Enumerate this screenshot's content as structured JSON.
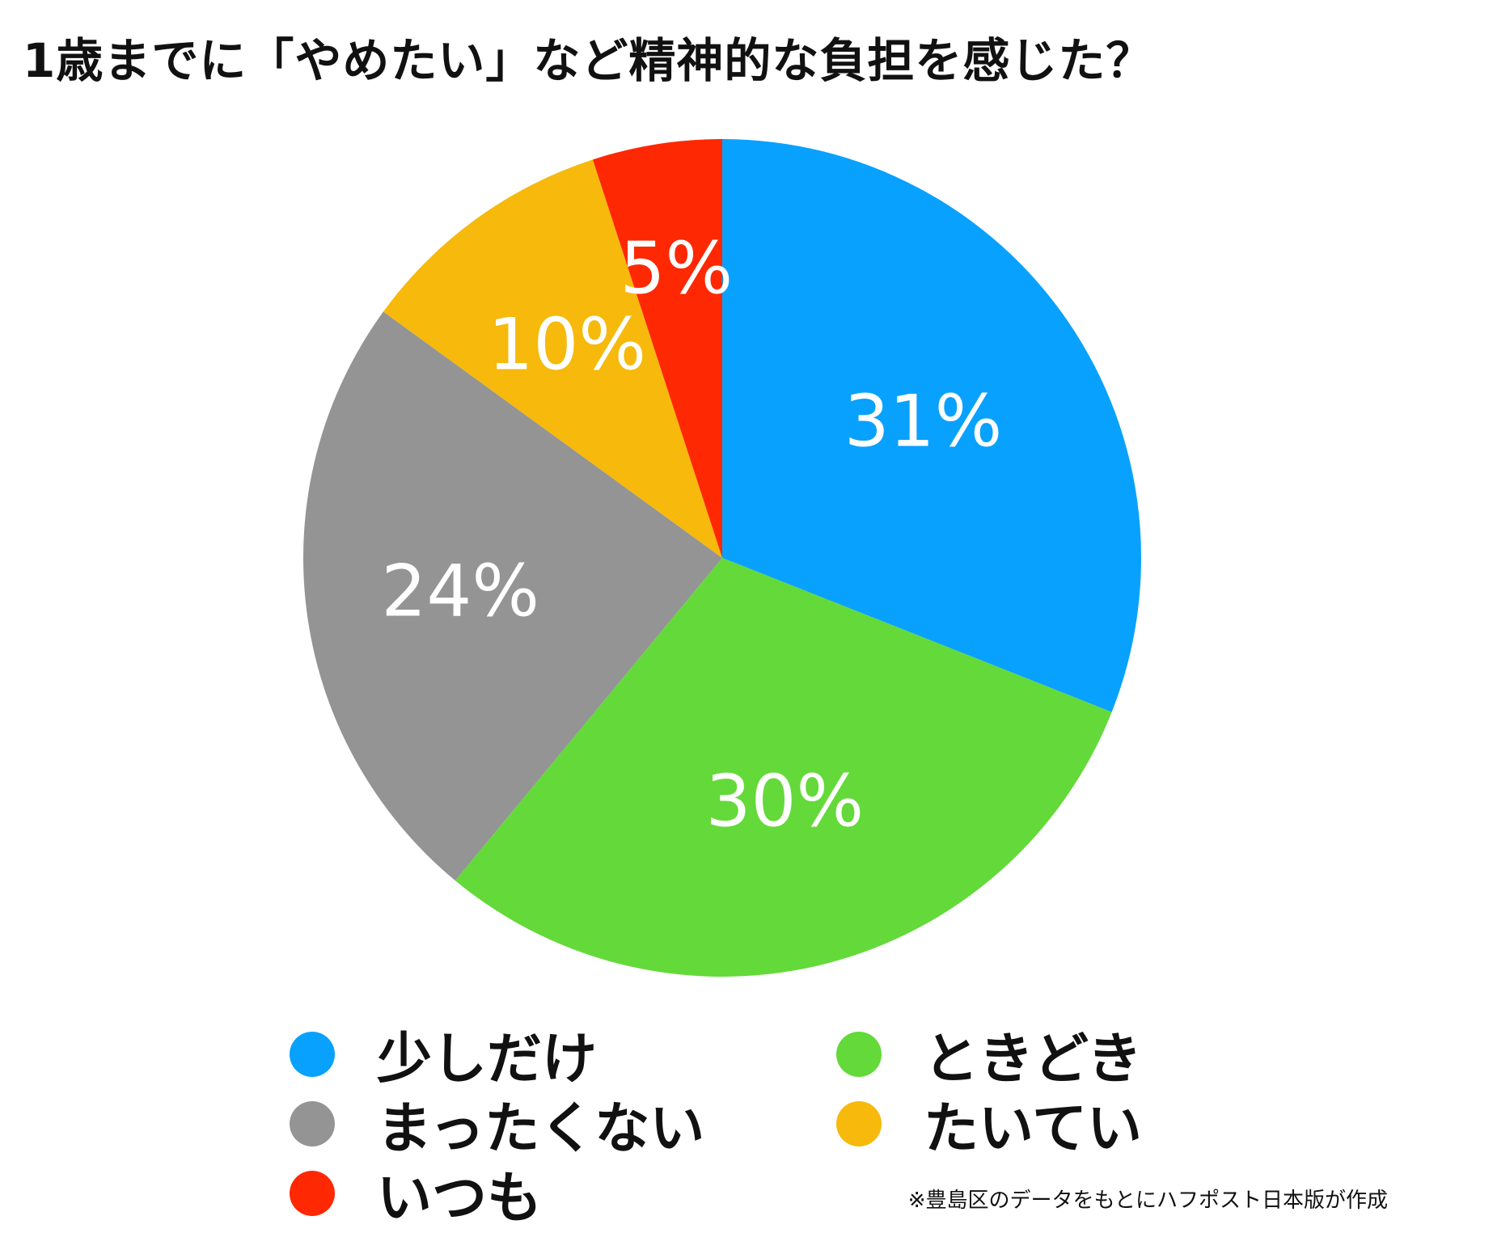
{
  "title": "1歳までに「やめたい」など精神的な負担を感じた？",
  "footnote": "※豊島区のデータをもとにハフポスト日本版が作成",
  "chart_data": {
    "type": "pie",
    "title": "1歳までに「やめたい」など精神的な負担を感じた？",
    "start_angle": "12 o'clock",
    "direction": "clockwise",
    "slices": [
      {
        "name": "少しだけ",
        "value": 31,
        "label": "31%",
        "color": "#09a1fe"
      },
      {
        "name": "ときどき",
        "value": 30,
        "label": "30%",
        "color": "#64d93a"
      },
      {
        "name": "まったくない",
        "value": 24,
        "label": "24%",
        "color": "#949494"
      },
      {
        "name": "たいてい",
        "value": 10,
        "label": "10%",
        "color": "#f6b90c"
      },
      {
        "name": "いつも",
        "value": 5,
        "label": "5%",
        "color": "#fe2802"
      }
    ]
  },
  "legend": [
    {
      "name": "少しだけ",
      "color": "#09a1fe"
    },
    {
      "name": "ときどき",
      "color": "#64d93a"
    },
    {
      "name": "まったくない",
      "color": "#949494"
    },
    {
      "name": "たいてい",
      "color": "#f6b90c"
    },
    {
      "name": "いつも",
      "color": "#fe2802"
    }
  ]
}
